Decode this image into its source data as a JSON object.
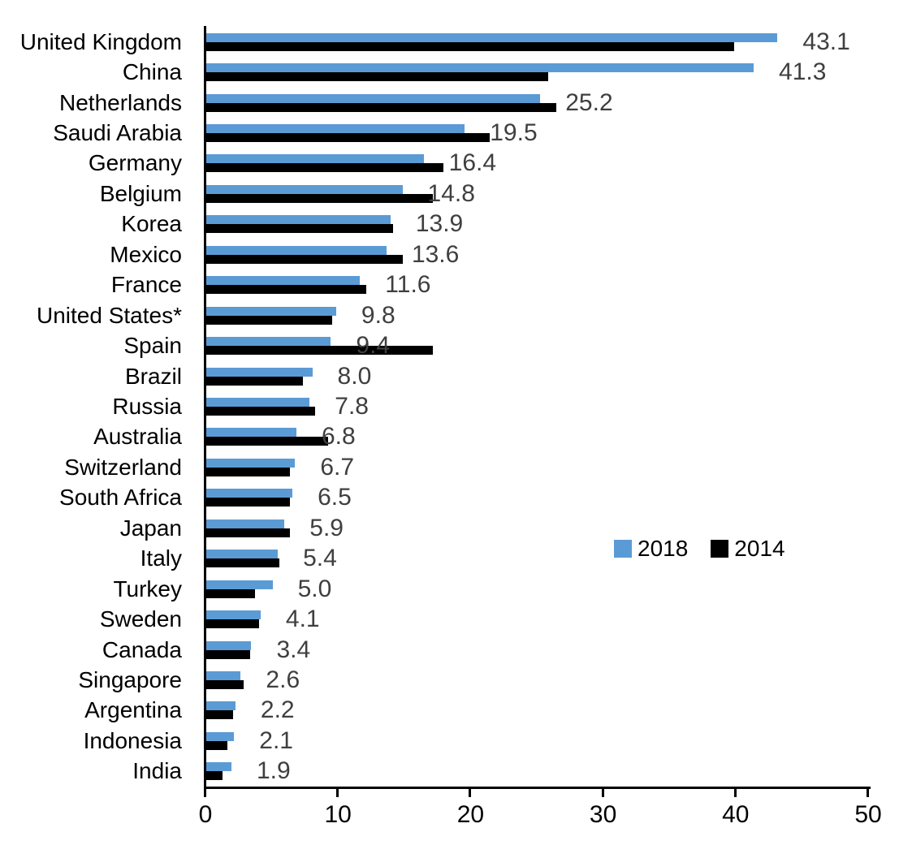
{
  "chart_data": {
    "type": "bar",
    "orientation": "horizontal",
    "title": "",
    "xlabel": "",
    "ylabel": "",
    "xlim": [
      0,
      50
    ],
    "x_ticks": [
      0,
      10,
      20,
      30,
      40,
      50
    ],
    "x_tick_labels": [
      "0",
      "10",
      "20",
      "30",
      "40",
      "50"
    ],
    "grid": "off",
    "legend_position": "middle-right",
    "categories": [
      "United Kingdom",
      "China",
      "Netherlands",
      "Saudi Arabia",
      "Germany",
      "Belgium",
      "Korea",
      "Mexico",
      "France",
      "United States*",
      "Spain",
      "Brazil",
      "Russia",
      "Australia",
      "Switzerland",
      "South Africa",
      "Japan",
      "Italy",
      "Turkey",
      "Sweden",
      "Canada",
      "Singapore",
      "Argentina",
      "Indonesia",
      "India"
    ],
    "series": [
      {
        "name": "2018",
        "color": "#5B9BD5",
        "values": [
          43.1,
          41.3,
          25.2,
          19.5,
          16.4,
          14.8,
          13.9,
          13.6,
          11.6,
          9.8,
          9.4,
          8.0,
          7.8,
          6.8,
          6.7,
          6.5,
          5.9,
          5.4,
          5.0,
          4.1,
          3.4,
          2.6,
          2.2,
          2.1,
          1.9
        ]
      },
      {
        "name": "2014",
        "color": "#000000",
        "values": [
          39.8,
          25.8,
          26.4,
          21.4,
          17.9,
          17.1,
          14.1,
          14.8,
          12.1,
          9.5,
          17.1,
          7.3,
          8.2,
          9.2,
          6.3,
          6.3,
          6.3,
          5.5,
          3.7,
          4.0,
          3.3,
          2.8,
          2.0,
          1.6,
          1.2
        ]
      }
    ],
    "value_labels": [
      "43.1",
      "41.3",
      "25.2",
      "19.5",
      "16.4",
      "14.8",
      "13.9",
      "13.6",
      "11.6",
      "9.8",
      "9.4",
      "8.0",
      "7.8",
      "6.8",
      "6.7",
      "6.5",
      "5.9",
      "5.4",
      "5.0",
      "4.1",
      "3.4",
      "2.6",
      "2.2",
      "2.1",
      "1.9"
    ],
    "value_label_color": "#3F3F3F",
    "axis_color": "#000000"
  }
}
